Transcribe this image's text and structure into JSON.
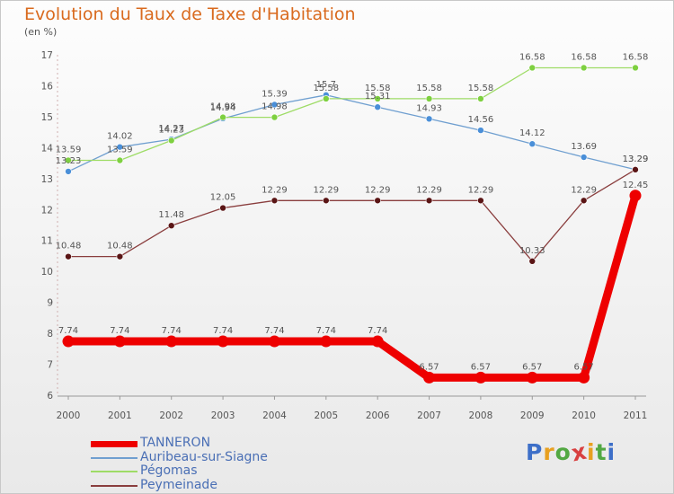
{
  "header": {
    "title": "Evolution du Taux de Taxe d'Habitation",
    "unit": "(en %)"
  },
  "chart_data": {
    "type": "line",
    "x": [
      2000,
      2001,
      2002,
      2003,
      2004,
      2005,
      2006,
      2007,
      2008,
      2009,
      2010,
      2011
    ],
    "x_tick_labels": [
      "2000",
      "2001",
      "2002",
      "2003",
      "2004",
      "2005",
      "2006",
      "2007",
      "2008",
      "2009",
      "2010",
      "2011"
    ],
    "ylim": [
      6,
      17
    ],
    "y_ticks": [
      6,
      7,
      8,
      9,
      10,
      11,
      12,
      13,
      14,
      15,
      16,
      17
    ],
    "y_tick_labels": [
      "6",
      "7",
      "8",
      "9",
      "10",
      "11",
      "12",
      "13",
      "14",
      "15",
      "16",
      "17"
    ],
    "legend_position": "bottom-left",
    "series": [
      {
        "name": "Auribeau-sur-Siagne",
        "color": "#6f9fd0",
        "marker_color": "#4a8fd8",
        "values": [
          13.23,
          14.02,
          14.27,
          14.94,
          15.39,
          15.7,
          15.31,
          14.93,
          14.56,
          14.12,
          13.69,
          13.29
        ],
        "labels": [
          "13.23",
          "14.02",
          "14.27",
          "14.94",
          "15.39",
          "15.7",
          "15.31",
          "14.93",
          "14.56",
          "14.12",
          "13.69",
          "13.29"
        ]
      },
      {
        "name": "Pégomas",
        "color": "#9edc66",
        "marker_color": "#7ed040",
        "values": [
          13.59,
          13.59,
          14.23,
          14.98,
          14.98,
          15.58,
          15.58,
          15.58,
          15.58,
          16.58,
          16.58,
          16.58
        ],
        "labels": [
          "13.59",
          "13.59",
          "14.23",
          "14.98",
          "14.98",
          "15.58",
          "15.58",
          "15.58",
          "15.58",
          "16.58",
          "16.58",
          "16.58"
        ]
      },
      {
        "name": "Peymeinade",
        "color": "#8a3e3e",
        "marker_color": "#5a1515",
        "values": [
          10.48,
          10.48,
          11.48,
          12.05,
          12.29,
          12.29,
          12.29,
          12.29,
          12.29,
          10.33,
          12.29,
          13.29
        ],
        "labels": [
          "10.48",
          "10.48",
          "11.48",
          "12.05",
          "12.29",
          "12.29",
          "12.29",
          "12.29",
          "12.29",
          "10.33",
          "12.29",
          "13.29"
        ]
      },
      {
        "name": "TANNERON",
        "color": "#ee0000",
        "marker_color": "#ee0000",
        "values": [
          7.74,
          7.74,
          7.74,
          7.74,
          7.74,
          7.74,
          7.74,
          6.57,
          6.57,
          6.57,
          6.57,
          12.45
        ],
        "labels": [
          "7.74",
          "7.74",
          "7.74",
          "7.74",
          "7.74",
          "7.74",
          "7.74",
          "6.57",
          "6.57",
          "6.57",
          "6.57",
          "12.45"
        ]
      }
    ]
  },
  "legend": {
    "items": [
      {
        "label": "TANNERON",
        "color": "#ee0000"
      },
      {
        "label": "Auribeau-sur-Siagne",
        "color": "#6f9fd0"
      },
      {
        "label": "Pégomas",
        "color": "#9edc66"
      },
      {
        "label": "Peymeinade",
        "color": "#8a3e3e"
      }
    ]
  },
  "logo": {
    "letters": [
      "P",
      "r",
      "o",
      "x",
      "i",
      "t",
      "i"
    ],
    "colors": [
      "#3d6fc8",
      "#e8a020",
      "#52a842",
      "#d84040",
      "#e8a020",
      "#52a842",
      "#3d6fc8"
    ]
  }
}
